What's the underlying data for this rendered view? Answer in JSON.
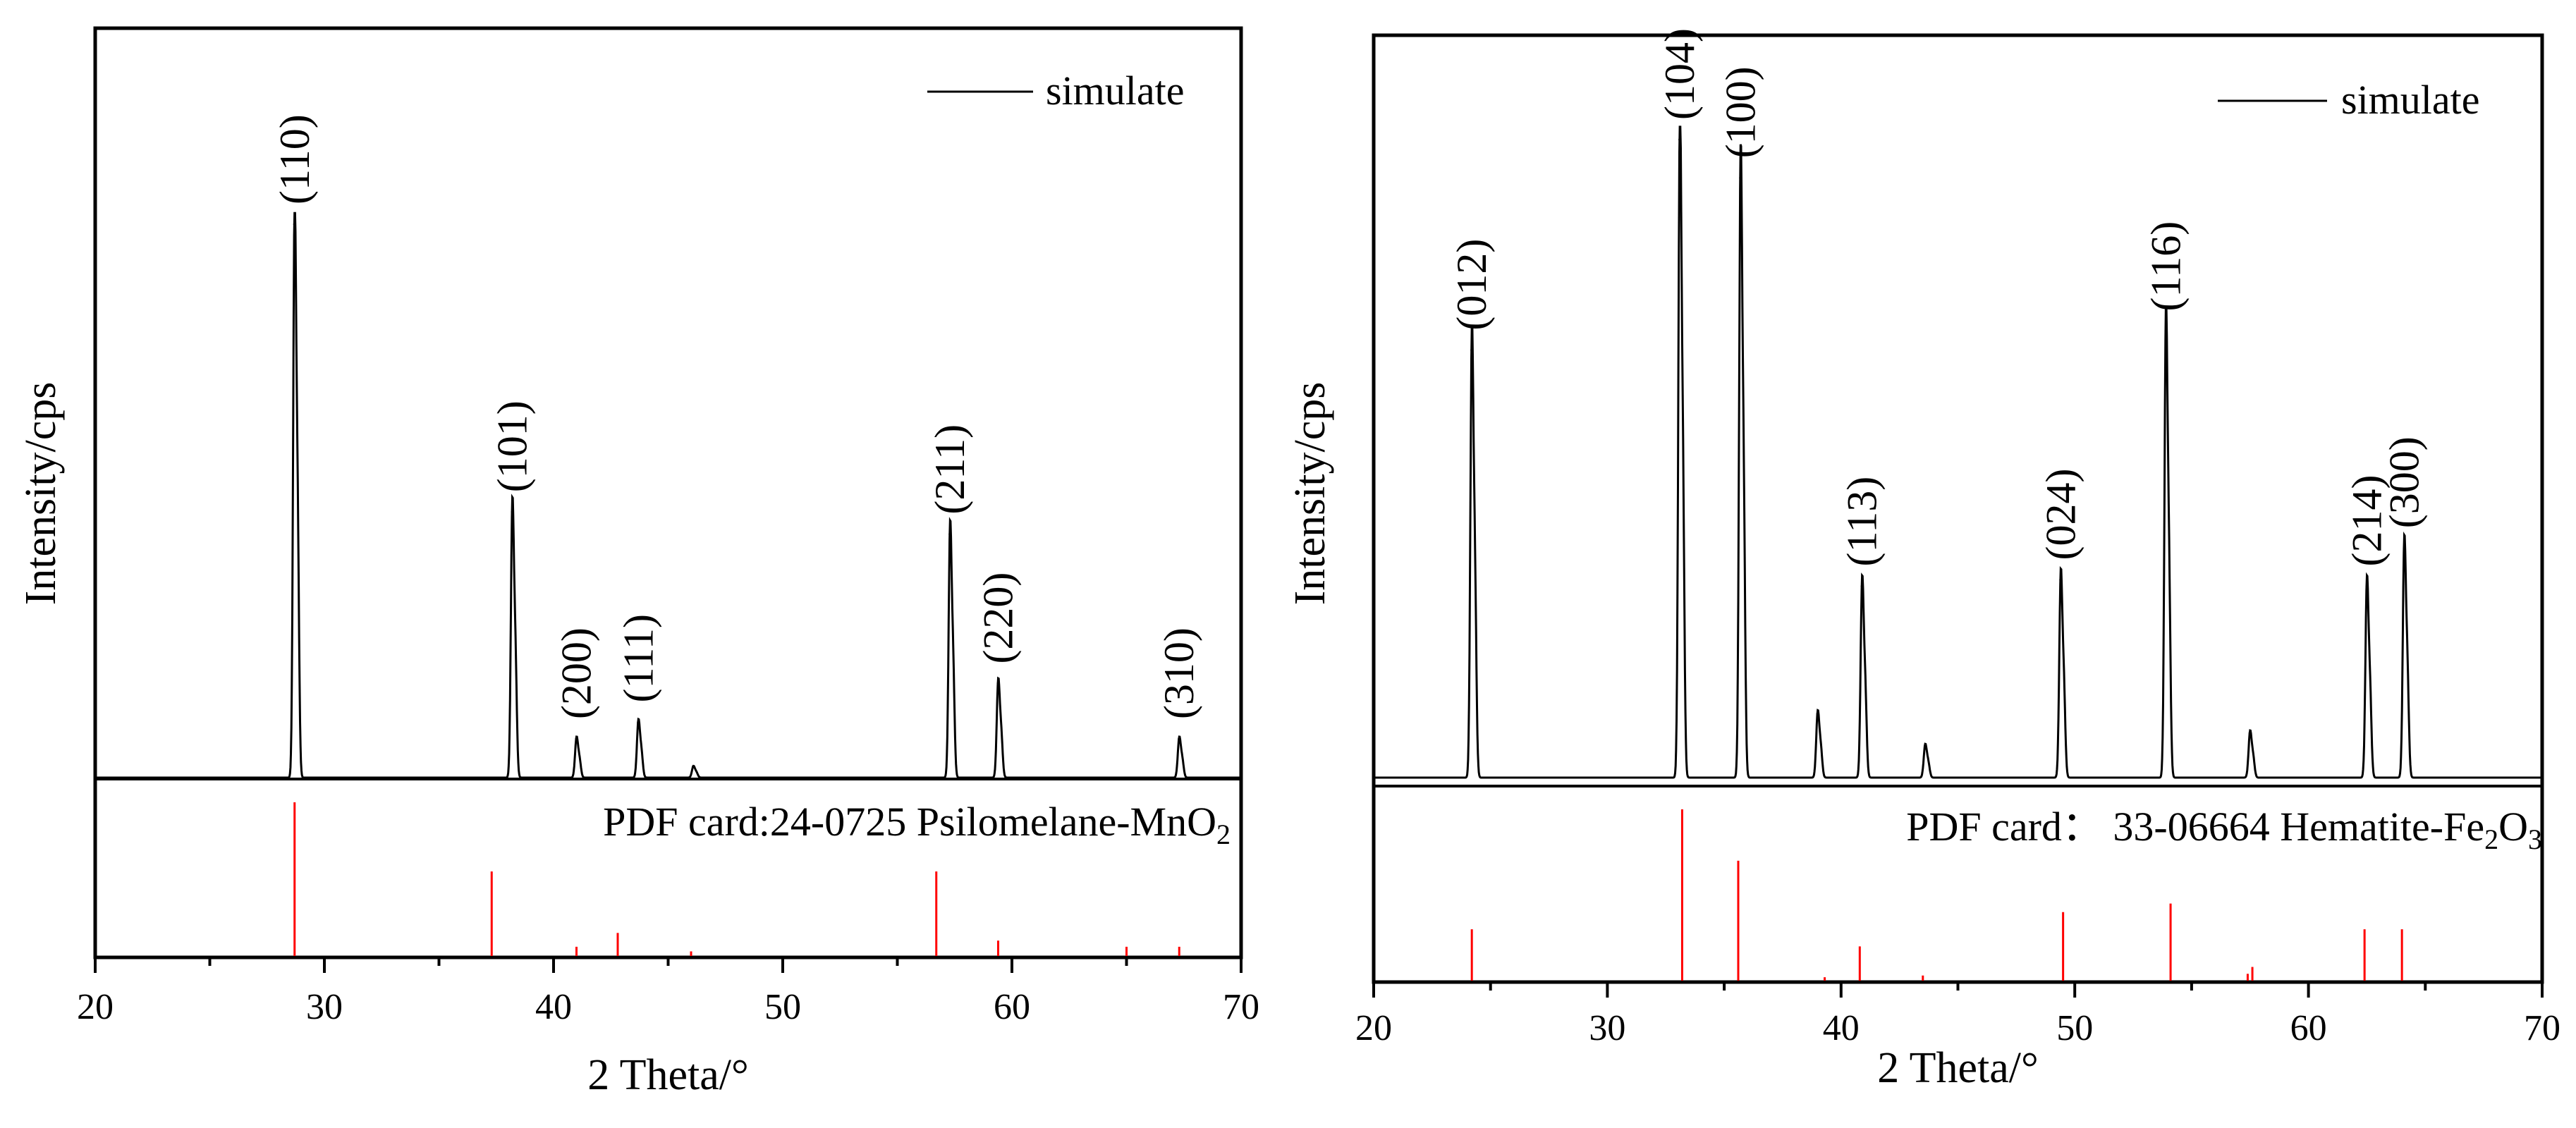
{
  "chart_data": [
    {
      "type": "line",
      "name": "psilomelane",
      "xlabel": "2 Theta/°",
      "ylabel": "Intensity/cps",
      "xlim": [
        20,
        70
      ],
      "xticks": [
        20,
        30,
        40,
        50,
        60,
        70
      ],
      "legend": {
        "label": "simulate",
        "position": "top-right"
      },
      "simulate_peaks": [
        {
          "x": 28.7,
          "y": 1.0,
          "hkl": "(110)"
        },
        {
          "x": 38.2,
          "y": 0.48,
          "hkl": "(101)"
        },
        {
          "x": 41.0,
          "y": 0.07,
          "hkl": "(200)"
        },
        {
          "x": 43.7,
          "y": 0.1,
          "hkl": "(111)"
        },
        {
          "x": 46.1,
          "y": 0.02,
          "hkl": ""
        },
        {
          "x": 57.3,
          "y": 0.44,
          "hkl": "(211)"
        },
        {
          "x": 59.4,
          "y": 0.17,
          "hkl": "(220)"
        },
        {
          "x": 67.3,
          "y": 0.07,
          "hkl": "(310)"
        }
      ],
      "reference": {
        "label": "PDF card:24-0725 Psilomelane-MnO",
        "subscript": "2",
        "lines": [
          {
            "x": 28.7,
            "y": 1.0
          },
          {
            "x": 37.3,
            "y": 0.55
          },
          {
            "x": 41.0,
            "y": 0.06
          },
          {
            "x": 42.8,
            "y": 0.15
          },
          {
            "x": 46.0,
            "y": 0.03
          },
          {
            "x": 56.7,
            "y": 0.55
          },
          {
            "x": 59.4,
            "y": 0.1
          },
          {
            "x": 65.0,
            "y": 0.06
          },
          {
            "x": 67.3,
            "y": 0.06
          }
        ]
      }
    },
    {
      "type": "line",
      "name": "hematite",
      "xlabel": "2 Theta/°",
      "ylabel": "Intensity/cps",
      "xlim": [
        20,
        70
      ],
      "xticks": [
        20,
        30,
        40,
        50,
        60,
        70
      ],
      "legend": {
        "label": "simulate",
        "position": "top-right"
      },
      "simulate_peaks": [
        {
          "x": 24.2,
          "y": 0.67,
          "hkl": "(012)"
        },
        {
          "x": 33.1,
          "y": 1.0,
          "hkl": "(104)"
        },
        {
          "x": 35.7,
          "y": 0.94,
          "hkl": "(100)"
        },
        {
          "x": 39.0,
          "y": 0.1,
          "hkl": ""
        },
        {
          "x": 40.9,
          "y": 0.3,
          "hkl": "(113)"
        },
        {
          "x": 43.6,
          "y": 0.05,
          "hkl": ""
        },
        {
          "x": 49.4,
          "y": 0.31,
          "hkl": "(024)"
        },
        {
          "x": 53.9,
          "y": 0.7,
          "hkl": "(116)"
        },
        {
          "x": 57.5,
          "y": 0.07,
          "hkl": ""
        },
        {
          "x": 62.5,
          "y": 0.3,
          "hkl": "(214)"
        },
        {
          "x": 64.1,
          "y": 0.36,
          "hkl": "(300)"
        }
      ],
      "reference": {
        "label": "PDF card：  33-06664 Hematite-Fe",
        "subscript": "2",
        "suffix": "O",
        "suffix_subscript": "3",
        "lines": [
          {
            "x": 24.2,
            "y": 0.3
          },
          {
            "x": 33.2,
            "y": 1.0
          },
          {
            "x": 35.6,
            "y": 0.7
          },
          {
            "x": 39.3,
            "y": 0.02
          },
          {
            "x": 40.8,
            "y": 0.2
          },
          {
            "x": 43.5,
            "y": 0.03
          },
          {
            "x": 49.5,
            "y": 0.4
          },
          {
            "x": 54.1,
            "y": 0.45
          },
          {
            "x": 57.4,
            "y": 0.04
          },
          {
            "x": 57.6,
            "y": 0.08
          },
          {
            "x": 62.4,
            "y": 0.3
          },
          {
            "x": 64.0,
            "y": 0.3
          }
        ]
      }
    }
  ]
}
